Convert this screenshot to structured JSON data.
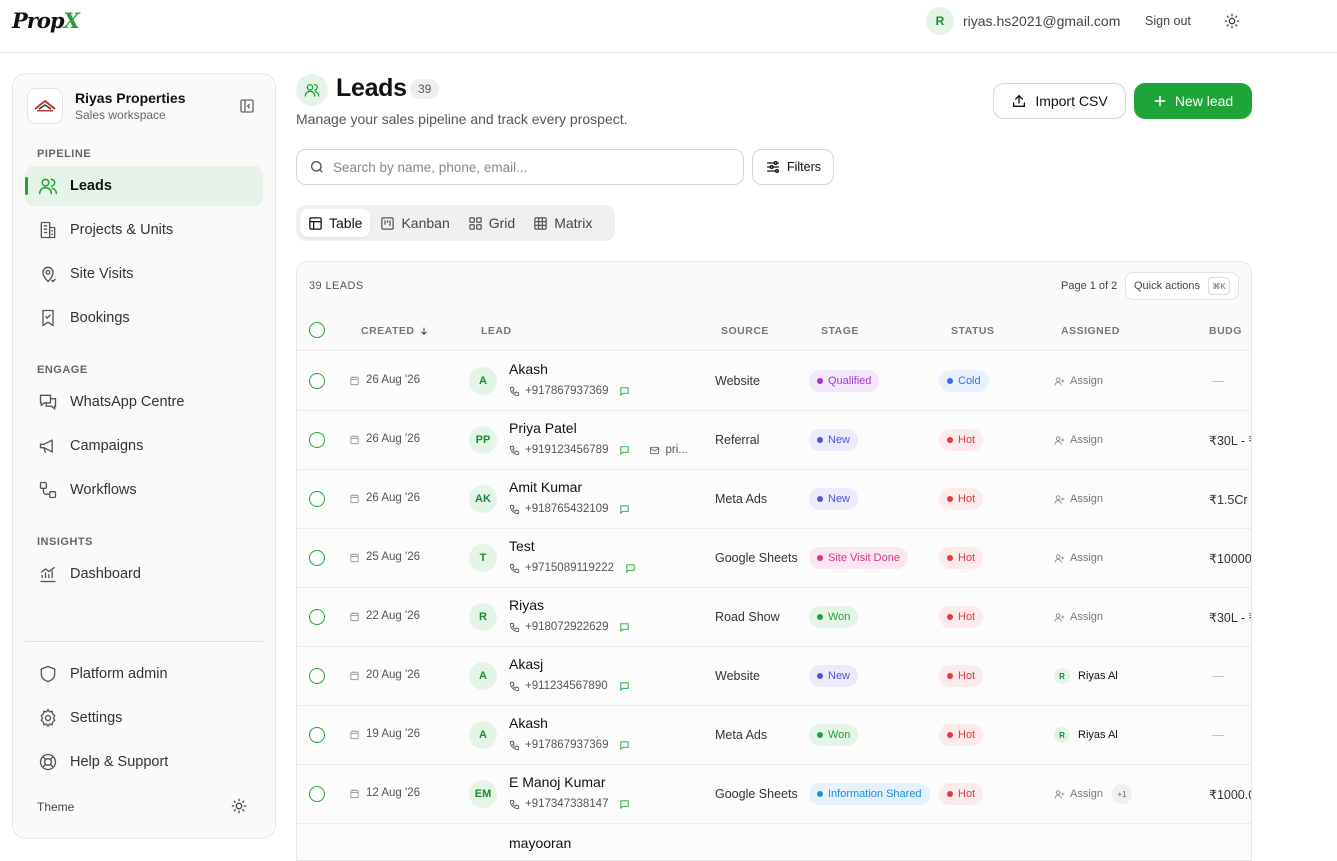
{
  "app": {
    "logo_main": "Prop",
    "logo_x": "X"
  },
  "topbar": {
    "user_initial": "R",
    "email": "riyas.hs2021@gmail.com",
    "sign_out": "Sign out"
  },
  "workspace": {
    "name": "Riyas Properties",
    "subtitle": "Sales workspace"
  },
  "sidebar": {
    "sections": [
      "PIPELINE",
      "ENGAGE",
      "INSIGHTS"
    ],
    "items": [
      {
        "label": "Leads",
        "icon": "users-icon",
        "active": true
      },
      {
        "label": "Projects & Units",
        "icon": "building-icon"
      },
      {
        "label": "Site Visits",
        "icon": "location-pin-icon"
      },
      {
        "label": "Bookings",
        "icon": "bookmark-check-icon"
      },
      {
        "label": "WhatsApp Centre",
        "icon": "chat-bubbles-icon"
      },
      {
        "label": "Campaigns",
        "icon": "megaphone-icon"
      },
      {
        "label": "Workflows",
        "icon": "workflow-icon"
      },
      {
        "label": "Dashboard",
        "icon": "chart-icon"
      }
    ],
    "bottom": [
      {
        "label": "Platform admin",
        "icon": "shield-icon"
      },
      {
        "label": "Settings",
        "icon": "gear-icon"
      },
      {
        "label": "Help & Support",
        "icon": "lifebuoy-icon"
      }
    ],
    "theme_label": "Theme"
  },
  "header": {
    "title": "Leads",
    "count": "39",
    "subtitle": "Manage your sales pipeline and track every prospect.",
    "import_label": "Import CSV",
    "new_label": "New lead"
  },
  "search": {
    "placeholder": "Search by name, phone, email..."
  },
  "filters_label": "Filters",
  "views": [
    "Table",
    "Kanban",
    "Grid",
    "Matrix"
  ],
  "table": {
    "leads_count": "39 LEADS",
    "page": "Page 1 of 2",
    "quick_actions": "Quick actions",
    "shortcut": "⌘K",
    "columns": [
      "CREATED",
      "LEAD",
      "SOURCE",
      "STAGE",
      "STATUS",
      "ASSIGNED",
      "BUDG"
    ],
    "rows": [
      {
        "created": "26 Aug '26",
        "initials": "A",
        "name": "Akash",
        "phone": "+917867937369",
        "email": "",
        "source": "Website",
        "stage": "Qualified",
        "status": "Cold",
        "assigned": "Assign",
        "extra": "",
        "budget": "—"
      },
      {
        "created": "26 Aug '26",
        "initials": "PP",
        "name": "Priya Patel",
        "phone": "+919123456789",
        "email": "pri...",
        "source": "Referral",
        "stage": "New",
        "status": "Hot",
        "assigned": "Assign",
        "extra": "",
        "budget": "₹30L - ₹"
      },
      {
        "created": "26 Aug '26",
        "initials": "AK",
        "name": "Amit Kumar",
        "phone": "+918765432109",
        "email": "",
        "source": "Meta Ads",
        "stage": "New",
        "status": "Hot",
        "assigned": "Assign",
        "extra": "",
        "budget": "₹1.5Cr"
      },
      {
        "created": "25 Aug '26",
        "initials": "T",
        "name": "Test",
        "phone": "+9715089119222",
        "email": "",
        "source": "Google Sheets",
        "stage": "Site Visit Done",
        "status": "Hot",
        "assigned": "Assign",
        "extra": "",
        "budget": "₹10000"
      },
      {
        "created": "22 Aug '26",
        "initials": "R",
        "name": "Riyas",
        "phone": "+918072922629",
        "email": "",
        "source": "Road Show",
        "stage": "Won",
        "status": "Hot",
        "assigned": "Assign",
        "extra": "",
        "budget": "₹30L - ₹"
      },
      {
        "created": "20 Aug '26",
        "initials": "A",
        "name": "Akasj",
        "phone": "+911234567890",
        "email": "",
        "source": "Website",
        "stage": "New",
        "status": "Hot",
        "assigned": "Riyas Al",
        "extra": "",
        "budget": "—"
      },
      {
        "created": "19 Aug '26",
        "initials": "A",
        "name": "Akash",
        "phone": "+917867937369",
        "email": "",
        "source": "Meta Ads",
        "stage": "Won",
        "status": "Hot",
        "assigned": "Riyas Al",
        "extra": "",
        "budget": "—"
      },
      {
        "created": "12 Aug '26",
        "initials": "EM",
        "name": "E Manoj Kumar",
        "phone": "+917347338147",
        "email": "",
        "source": "Google Sheets",
        "stage": "Information Shared",
        "status": "Hot",
        "assigned": "Assign",
        "extra": "+1",
        "budget": "₹1000.0"
      },
      {
        "created": "",
        "initials": "",
        "name": "mayooran",
        "phone": "",
        "email": "",
        "source": "",
        "stage": "",
        "status": "",
        "assigned": "",
        "extra": "",
        "budget": ""
      }
    ]
  },
  "colors": {
    "accent": "#1fa43a",
    "qualified": "#a23bd6",
    "new": "#4f56d8",
    "site_visit_done": "#d63a8a",
    "won": "#1fa43a",
    "information_shared": "#1b8fd6",
    "hot": "#e23c3c",
    "cold": "#3b6fe0"
  }
}
